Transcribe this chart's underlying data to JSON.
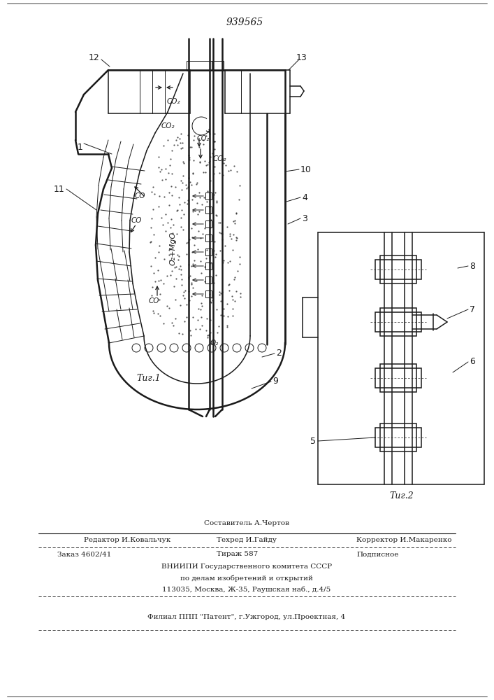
{
  "patent_number": "939565",
  "fig1_caption": "Τиг.1",
  "fig2_caption": "Τиг.2",
  "footer_line1": "Составитель А.Чертов",
  "footer_line2_left": "Редактор И.Ковальчук",
  "footer_line2_mid": "Техред И.Гайду",
  "footer_line2_right": "Корректор И.Макаренко",
  "footer_line3_left": "Заказ 4602/41",
  "footer_line3_mid": "Тираж 587",
  "footer_line3_right": "Подписное",
  "footer_line4": "ВНИИПИ Государственного комитета СССР",
  "footer_line5": "по делам изобретений и открытий",
  "footer_line6": "113035, Москва, Ж-35, Раушская наб., д.4/5",
  "footer_line7": "Филиал ППП \"Патент\", г.Ужгород, ул.Проектная, 4",
  "bg_color": "#ffffff",
  "line_color": "#1a1a1a"
}
